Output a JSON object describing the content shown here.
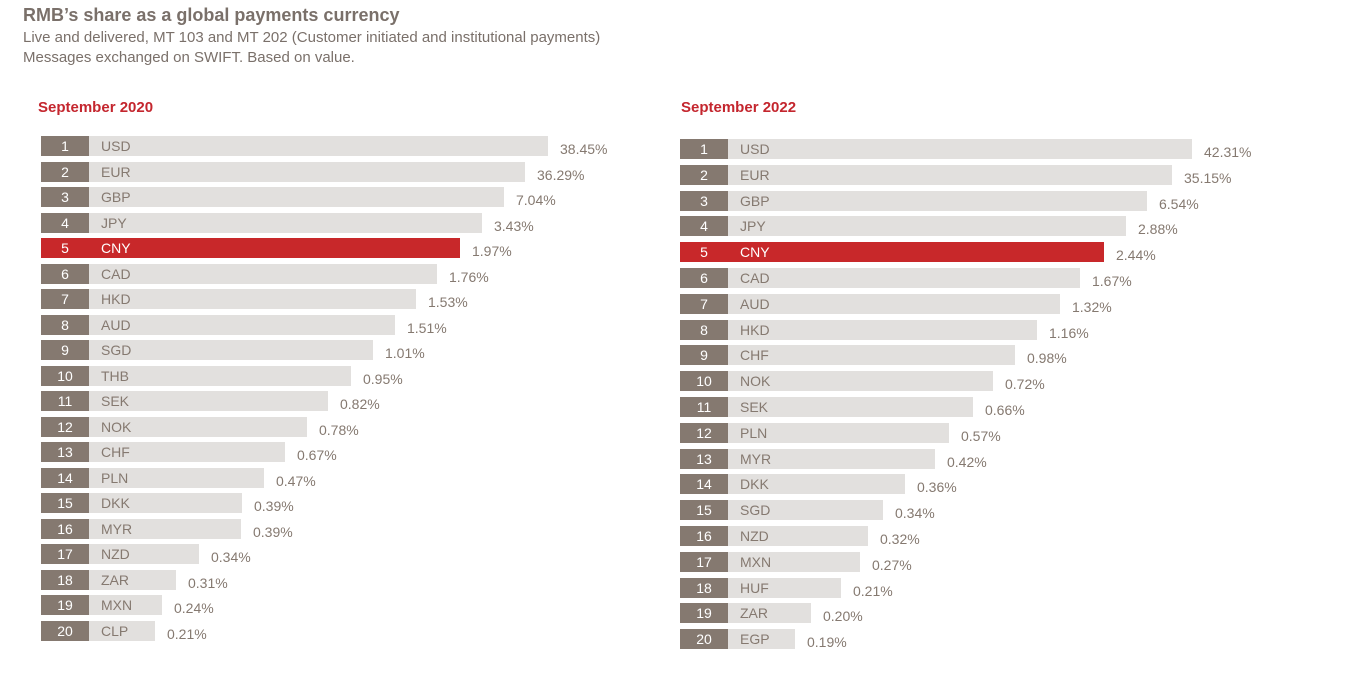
{
  "header": {
    "title": "RMB’s share as a global payments currency",
    "subtitle1": "Live and delivered, MT 103 and MT 202 (Customer initiated and institutional payments)",
    "subtitle2": "Messages exchanged on SWIFT. Based on value."
  },
  "colors": {
    "highlight": "#c8282a",
    "rank_box": "#857970",
    "bar": "#e2e0de",
    "panel_title": "#c4262e"
  },
  "chart_data": [
    {
      "type": "bar",
      "orientation": "horizontal",
      "title": "September 2020",
      "unit": "%",
      "highlight": "CNY",
      "ranks": [
        1,
        2,
        3,
        4,
        5,
        6,
        7,
        8,
        9,
        10,
        11,
        12,
        13,
        14,
        15,
        16,
        17,
        18,
        19,
        20
      ],
      "categories": [
        "USD",
        "EUR",
        "GBP",
        "JPY",
        "CNY",
        "CAD",
        "HKD",
        "AUD",
        "SGD",
        "THB",
        "SEK",
        "NOK",
        "CHF",
        "PLN",
        "DKK",
        "MYR",
        "NZD",
        "ZAR",
        "MXN",
        "CLP"
      ],
      "values": [
        38.45,
        36.29,
        7.04,
        3.43,
        1.97,
        1.76,
        1.53,
        1.51,
        1.01,
        0.95,
        0.82,
        0.78,
        0.67,
        0.47,
        0.39,
        0.39,
        0.34,
        0.31,
        0.24,
        0.21
      ],
      "labels": [
        "38.45%",
        "36.29%",
        "7.04%",
        "3.43%",
        "1.97%",
        "1.76%",
        "1.53%",
        "1.51%",
        "1.01%",
        "0.95%",
        "0.82%",
        "0.78%",
        "0.67%",
        "0.47%",
        "0.39%",
        "0.39%",
        "0.34%",
        "0.31%",
        "0.24%",
        "0.21%"
      ]
    },
    {
      "type": "bar",
      "orientation": "horizontal",
      "title": "September 2022",
      "unit": "%",
      "highlight": "CNY",
      "ranks": [
        1,
        2,
        3,
        4,
        5,
        6,
        7,
        8,
        9,
        10,
        11,
        12,
        13,
        14,
        15,
        16,
        17,
        18,
        19,
        20
      ],
      "categories": [
        "USD",
        "EUR",
        "GBP",
        "JPY",
        "CNY",
        "CAD",
        "AUD",
        "HKD",
        "CHF",
        "NOK",
        "SEK",
        "PLN",
        "MYR",
        "DKK",
        "SGD",
        "NZD",
        "MXN",
        "HUF",
        "ZAR",
        "EGP"
      ],
      "values": [
        42.31,
        35.15,
        6.54,
        2.88,
        2.44,
        1.67,
        1.32,
        1.16,
        0.98,
        0.72,
        0.66,
        0.57,
        0.42,
        0.36,
        0.34,
        0.32,
        0.27,
        0.21,
        0.2,
        0.19
      ],
      "labels": [
        "42.31%",
        "35.15%",
        "6.54%",
        "2.88%",
        "2.44%",
        "1.67%",
        "1.32%",
        "1.16%",
        "0.98%",
        "0.72%",
        "0.66%",
        "0.57%",
        "0.42%",
        "0.36%",
        "0.34%",
        "0.32%",
        "0.27%",
        "0.21%",
        "0.20%",
        "0.19%"
      ]
    }
  ]
}
